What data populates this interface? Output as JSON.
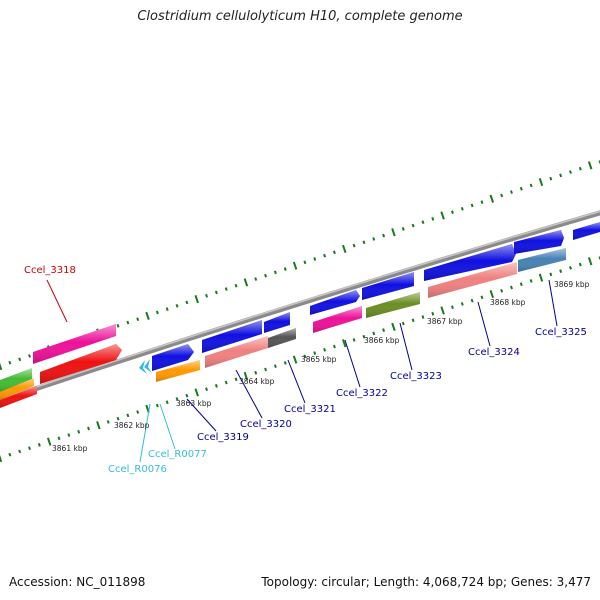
{
  "title": "Clostridium cellulolyticum H10, complete genome",
  "accession": "Accession: NC_011898",
  "summary": "Topology: circular; Length: 4,068,724 bp; Genes: 3,477",
  "ticks": [
    "3861 kbp",
    "3862 kbp",
    "3863 kbp",
    "3864 kbp",
    "3865 kbp",
    "3866 kbp",
    "3867 kbp",
    "3868 kbp",
    "3869 kbp"
  ],
  "genes": [
    {
      "name": "Ccel_3318",
      "color": "#cc0000"
    },
    {
      "name": "Ccel_R0076",
      "color": "#33bbdd"
    },
    {
      "name": "Ccel_R0077",
      "color": "#33bbdd"
    },
    {
      "name": "Ccel_3319",
      "color": "#000099"
    },
    {
      "name": "Ccel_3320",
      "color": "#000099"
    },
    {
      "name": "Ccel_3321",
      "color": "#000099"
    },
    {
      "name": "Ccel_3322",
      "color": "#000099"
    },
    {
      "name": "Ccel_3323",
      "color": "#000099"
    },
    {
      "name": "Ccel_3324",
      "color": "#000099"
    },
    {
      "name": "Ccel_3325",
      "color": "#000099"
    }
  ],
  "feature_colors": {
    "cds_blue": "#1010e0",
    "pink": "#ee1199",
    "salmon": "#f08080",
    "red": "#ee1111",
    "orange": "#ff9900",
    "green": "#44bb33",
    "olive": "#6b8e23",
    "steel": "#4682b4",
    "gray": "#555555",
    "rna_cyan": "#33bbdd",
    "backbone": "#8a8a8a",
    "tick_green": "#1a7a1a"
  }
}
